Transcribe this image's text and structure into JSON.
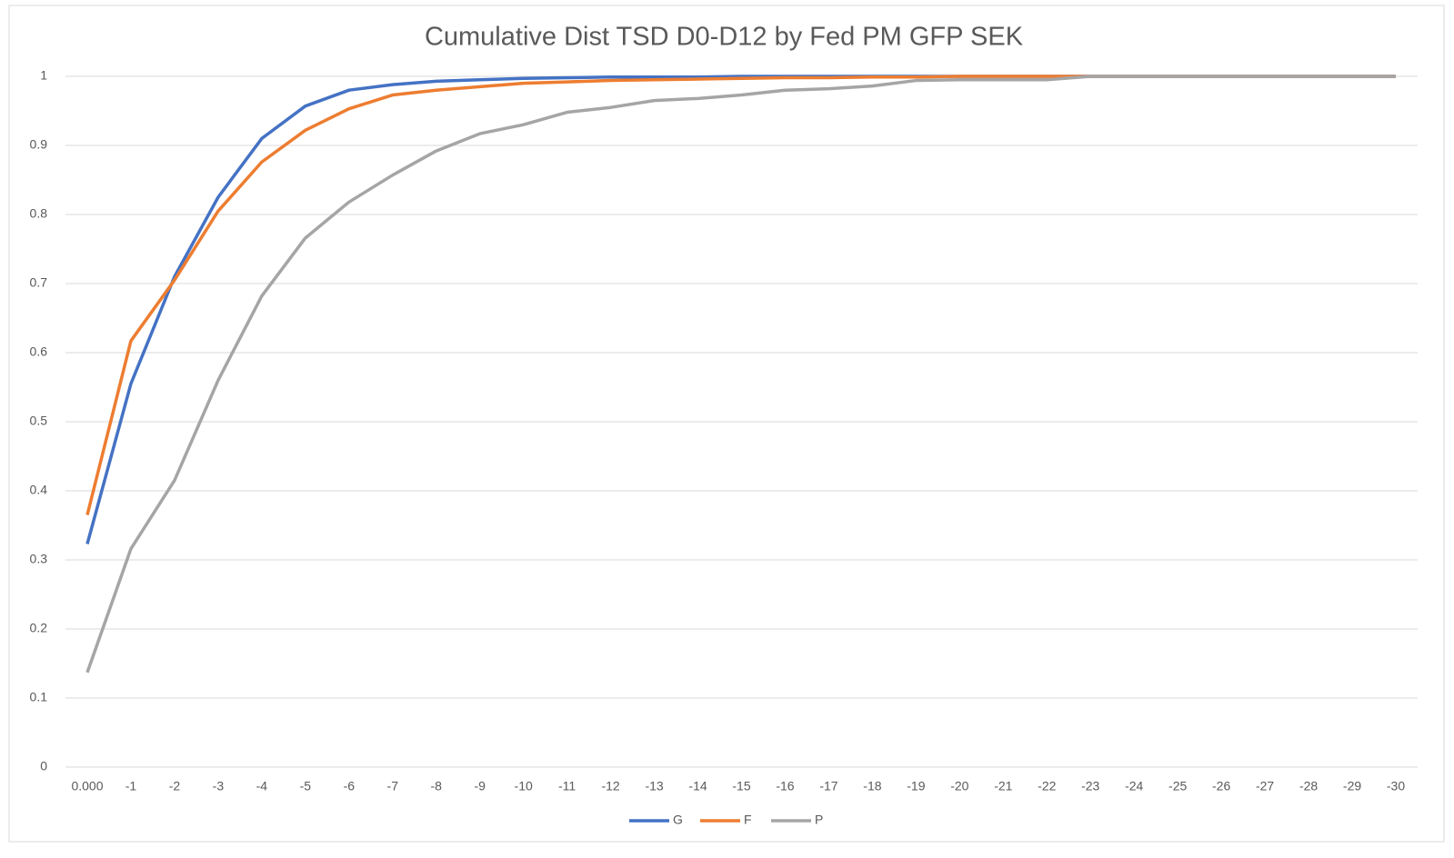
{
  "chart_data": {
    "type": "line",
    "title": "Cumulative Dist TSD D0-D12 by Fed PM GFP SEK",
    "categories": [
      "0.000",
      "-1",
      "-2",
      "-3",
      "-4",
      "-5",
      "-6",
      "-7",
      "-8",
      "-9",
      "-10",
      "-11",
      "-12",
      "-13",
      "-14",
      "-15",
      "-16",
      "-17",
      "-18",
      "-19",
      "-20",
      "-21",
      "-22",
      "-23",
      "-24",
      "-25",
      "-26",
      "-27",
      "-28",
      "-29",
      "-30"
    ],
    "series": [
      {
        "name": "G",
        "color": "#4472c4",
        "values": [
          0.323,
          0.555,
          0.71,
          0.825,
          0.91,
          0.957,
          0.98,
          0.988,
          0.993,
          0.995,
          0.997,
          0.998,
          0.999,
          0.999,
          0.999,
          1,
          1,
          1,
          1,
          1,
          1,
          1,
          1,
          1,
          1,
          1,
          1,
          1,
          1,
          1,
          1
        ]
      },
      {
        "name": "F",
        "color": "#ed7d31",
        "values": [
          0.365,
          0.617,
          0.705,
          0.805,
          0.876,
          0.922,
          0.953,
          0.973,
          0.98,
          0.985,
          0.99,
          0.992,
          0.994,
          0.995,
          0.996,
          0.997,
          0.998,
          0.998,
          0.999,
          0.999,
          1,
          1,
          1,
          1,
          1,
          1,
          1,
          1,
          1,
          1,
          1
        ]
      },
      {
        "name": "P",
        "color": "#a5a5a5",
        "values": [
          0.137,
          0.316,
          0.415,
          0.56,
          0.682,
          0.766,
          0.818,
          0.857,
          0.892,
          0.917,
          0.93,
          0.948,
          0.955,
          0.965,
          0.968,
          0.973,
          0.98,
          0.982,
          0.986,
          0.994,
          0.995,
          0.995,
          0.995,
          1,
          1,
          1,
          1,
          1,
          1,
          1,
          1
        ]
      }
    ],
    "ylim": [
      0,
      1
    ],
    "yticks": [
      0,
      0.1,
      0.2,
      0.3,
      0.4,
      0.5,
      0.6,
      0.7,
      0.8,
      0.9,
      1
    ],
    "grid": true,
    "legend": "bottom"
  }
}
